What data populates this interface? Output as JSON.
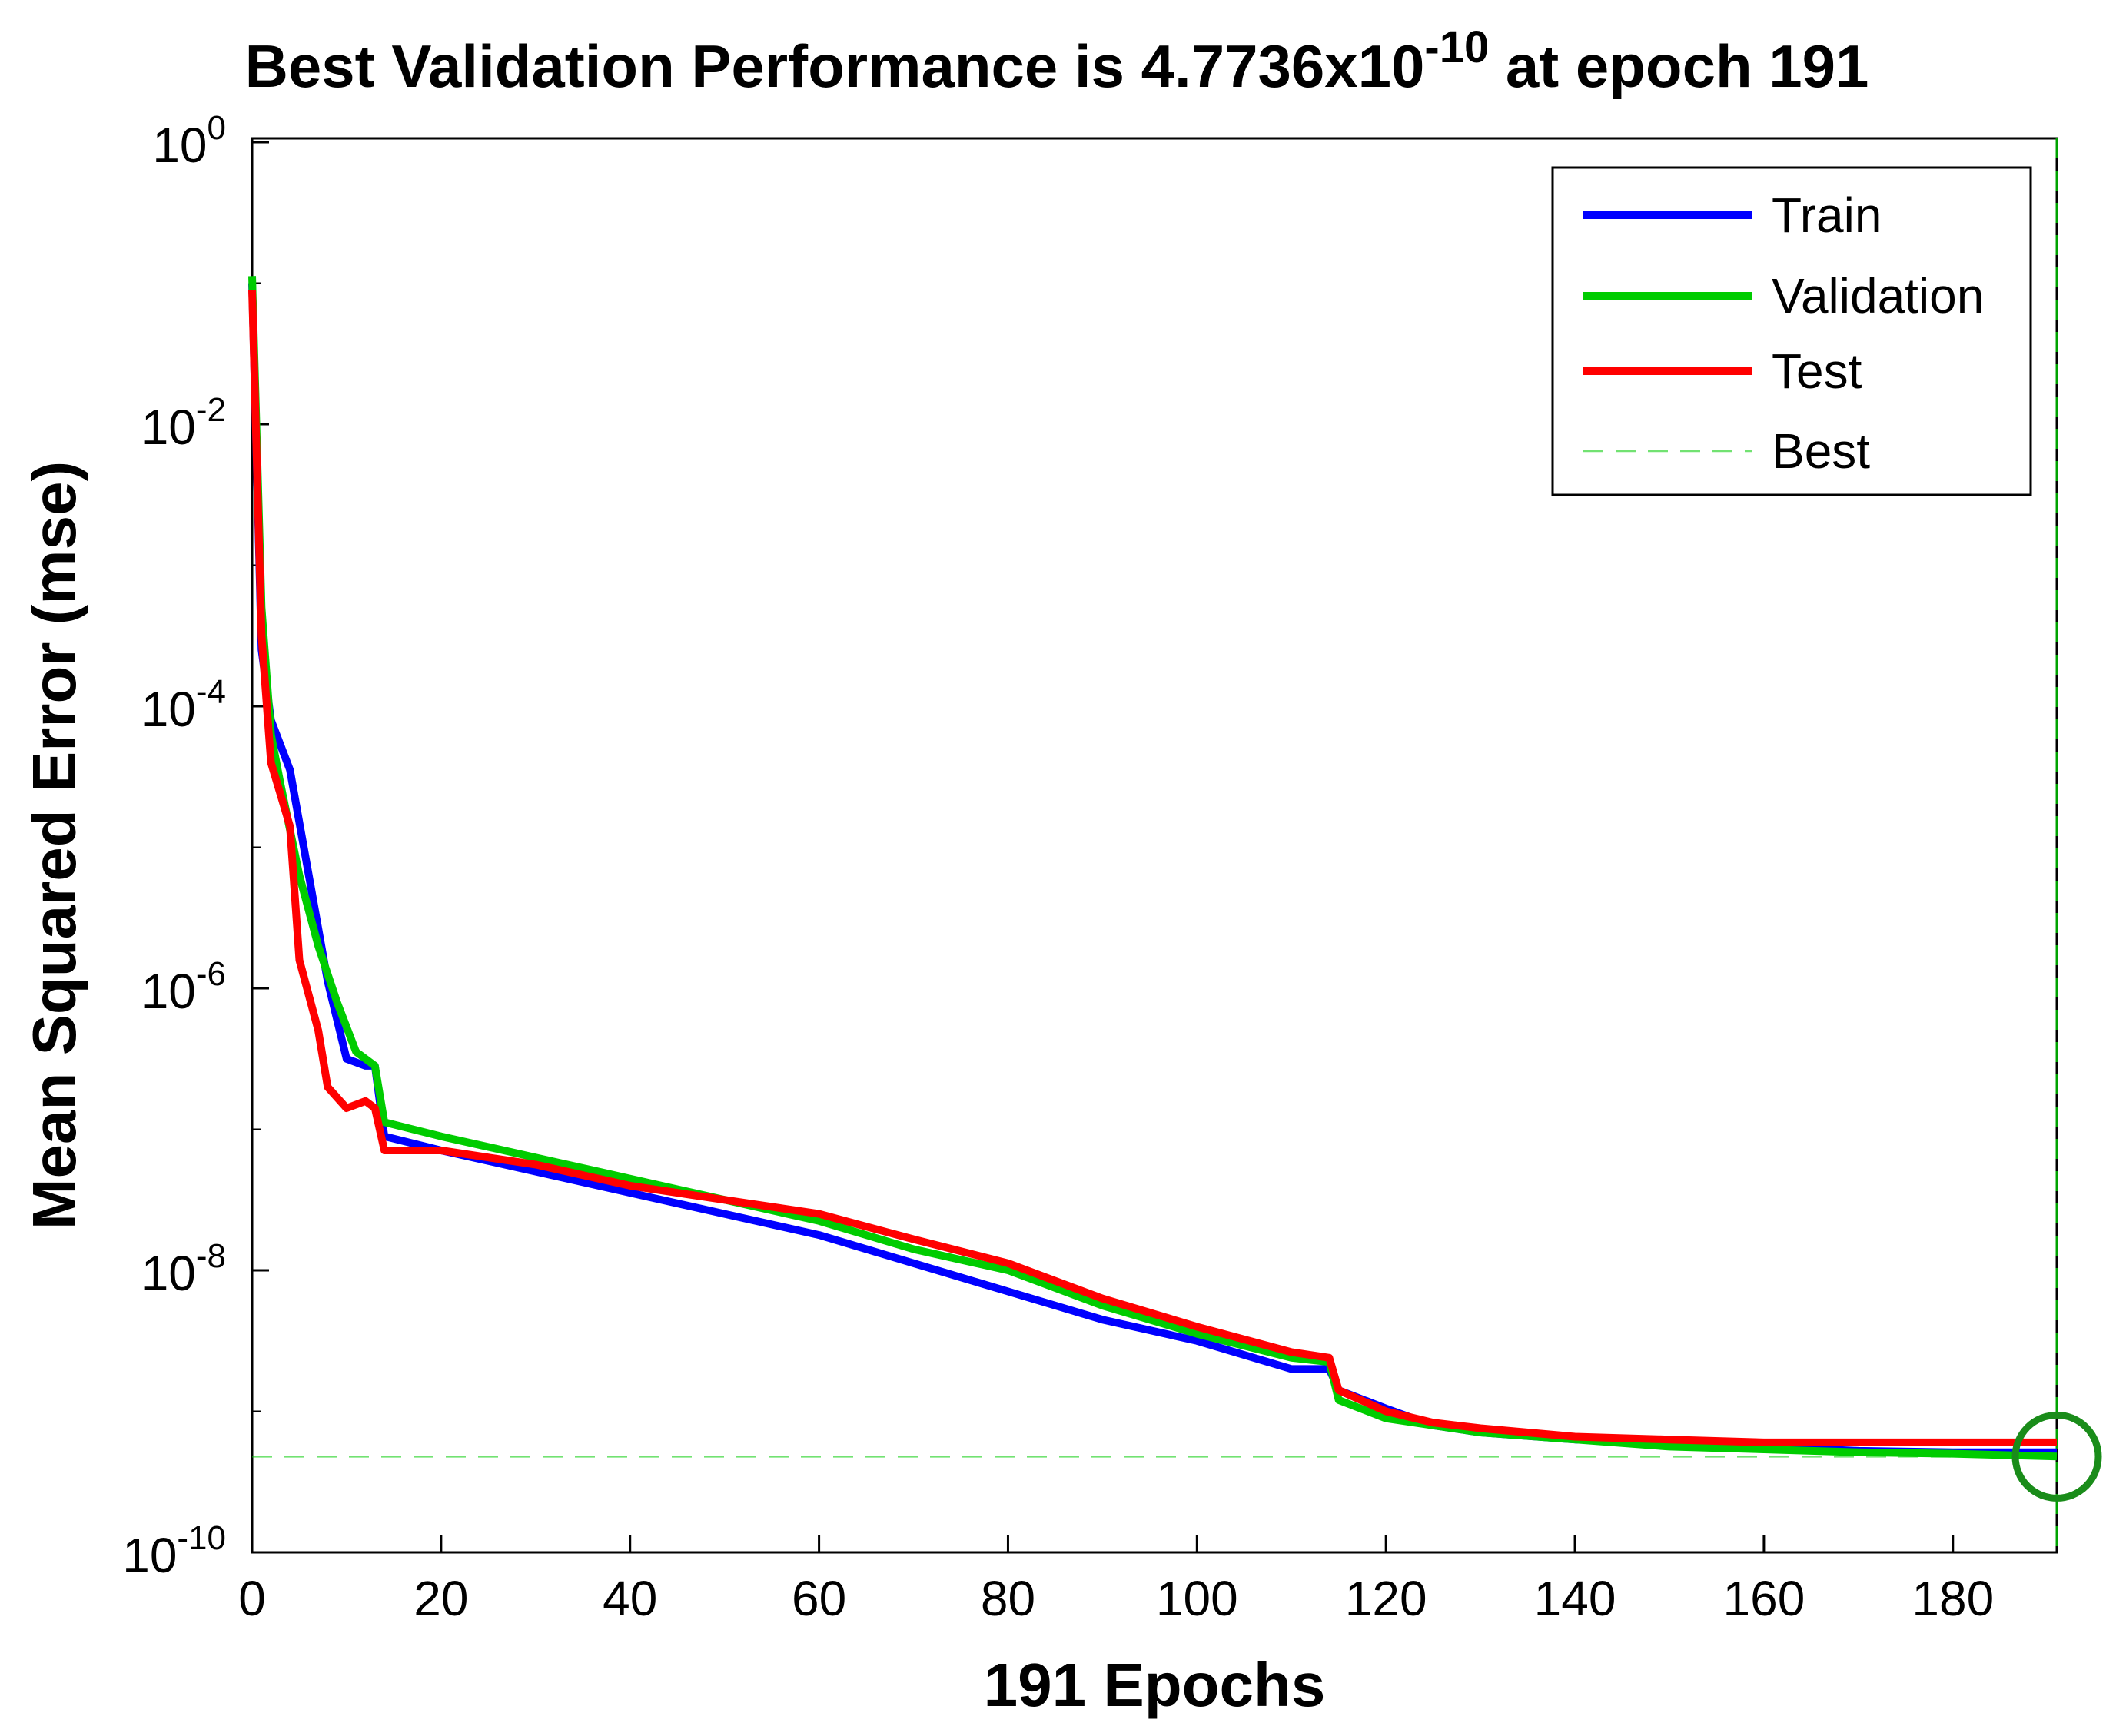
{
  "chart_data": {
    "type": "line",
    "title": {
      "prefix": "Best Validation Performance is 4.7736x10",
      "exponent": "-10",
      "suffix": " at epoch 191"
    },
    "xlabel": "191 Epochs",
    "ylabel": "Mean Squared Error  (mse)",
    "xlim": [
      0,
      191
    ],
    "ylim_log10": [
      -10,
      0
    ],
    "y_scale": "log",
    "x_ticks": [
      0,
      20,
      40,
      60,
      80,
      100,
      120,
      140,
      160,
      180
    ],
    "x_tick_labels": [
      "0",
      "20",
      "40",
      "60",
      "80",
      "100",
      "120",
      "140",
      "160",
      "180"
    ],
    "y_ticks": [
      {
        "base": "10",
        "exp": "0",
        "log10": 0
      },
      {
        "base": "10",
        "exp": "-2",
        "log10": -2
      },
      {
        "base": "10",
        "exp": "-4",
        "log10": -4
      },
      {
        "base": "10",
        "exp": "-6",
        "log10": -6
      },
      {
        "base": "10",
        "exp": "-8",
        "log10": -8
      },
      {
        "base": "10",
        "exp": "-10",
        "log10": -10
      }
    ],
    "grid": false,
    "legend_position": "top-right",
    "series": [
      {
        "name": "Train",
        "color": "#0000ff",
        "points_log10": [
          [
            0,
            -1
          ],
          [
            1,
            -3.6
          ],
          [
            2,
            -4.1
          ],
          [
            4,
            -4.45
          ],
          [
            6,
            -5.2
          ],
          [
            8,
            -5.95
          ],
          [
            10,
            -6.5
          ],
          [
            12,
            -6.55
          ],
          [
            13,
            -6.55
          ],
          [
            14,
            -7.05
          ],
          [
            20,
            -7.15
          ],
          [
            30,
            -7.3
          ],
          [
            40,
            -7.45
          ],
          [
            50,
            -7.6
          ],
          [
            60,
            -7.75
          ],
          [
            70,
            -7.95
          ],
          [
            80,
            -8.15
          ],
          [
            90,
            -8.35
          ],
          [
            100,
            -8.5
          ],
          [
            110,
            -8.7
          ],
          [
            114,
            -8.7
          ],
          [
            115,
            -8.85
          ],
          [
            120,
            -8.98
          ],
          [
            125,
            -9.1
          ],
          [
            130,
            -9.15
          ],
          [
            140,
            -9.2
          ],
          [
            150,
            -9.22
          ],
          [
            160,
            -9.25
          ],
          [
            170,
            -9.28
          ],
          [
            180,
            -9.29
          ],
          [
            191,
            -9.29
          ]
        ]
      },
      {
        "name": "Validation",
        "color": "#00cc00",
        "points_log10": [
          [
            0,
            -0.95
          ],
          [
            1,
            -3.3
          ],
          [
            2,
            -4.2
          ],
          [
            3,
            -4.55
          ],
          [
            5,
            -5.2
          ],
          [
            7,
            -5.7
          ],
          [
            9,
            -6.1
          ],
          [
            11,
            -6.45
          ],
          [
            13,
            -6.55
          ],
          [
            14,
            -6.95
          ],
          [
            20,
            -7.05
          ],
          [
            30,
            -7.2
          ],
          [
            40,
            -7.35
          ],
          [
            50,
            -7.5
          ],
          [
            60,
            -7.65
          ],
          [
            70,
            -7.85
          ],
          [
            80,
            -8.0
          ],
          [
            90,
            -8.25
          ],
          [
            100,
            -8.45
          ],
          [
            110,
            -8.62
          ],
          [
            114,
            -8.65
          ],
          [
            115,
            -8.92
          ],
          [
            120,
            -9.05
          ],
          [
            125,
            -9.1
          ],
          [
            130,
            -9.15
          ],
          [
            140,
            -9.2
          ],
          [
            150,
            -9.25
          ],
          [
            160,
            -9.27
          ],
          [
            170,
            -9.29
          ],
          [
            180,
            -9.3
          ],
          [
            191,
            -9.32
          ]
        ]
      },
      {
        "name": "Test",
        "color": "#ff0000",
        "points_log10": [
          [
            0,
            -1.05
          ],
          [
            1,
            -3.5
          ],
          [
            2,
            -4.4
          ],
          [
            4,
            -4.85
          ],
          [
            5,
            -5.8
          ],
          [
            7,
            -6.3
          ],
          [
            8,
            -6.7
          ],
          [
            10,
            -6.85
          ],
          [
            12,
            -6.8
          ],
          [
            13,
            -6.85
          ],
          [
            14,
            -7.15
          ],
          [
            20,
            -7.15
          ],
          [
            30,
            -7.25
          ],
          [
            40,
            -7.4
          ],
          [
            50,
            -7.5
          ],
          [
            60,
            -7.6
          ],
          [
            70,
            -7.78
          ],
          [
            80,
            -7.95
          ],
          [
            90,
            -8.2
          ],
          [
            100,
            -8.4
          ],
          [
            110,
            -8.58
          ],
          [
            114,
            -8.62
          ],
          [
            115,
            -8.85
          ],
          [
            120,
            -9.0
          ],
          [
            125,
            -9.08
          ],
          [
            130,
            -9.12
          ],
          [
            140,
            -9.18
          ],
          [
            150,
            -9.2
          ],
          [
            160,
            -9.22
          ],
          [
            170,
            -9.22
          ],
          [
            180,
            -9.22
          ],
          [
            191,
            -9.22
          ]
        ]
      },
      {
        "name": "Best",
        "color": "#00cc00",
        "style": "dashed",
        "best_epoch": 191,
        "best_value": 4.7736e-10
      }
    ]
  }
}
